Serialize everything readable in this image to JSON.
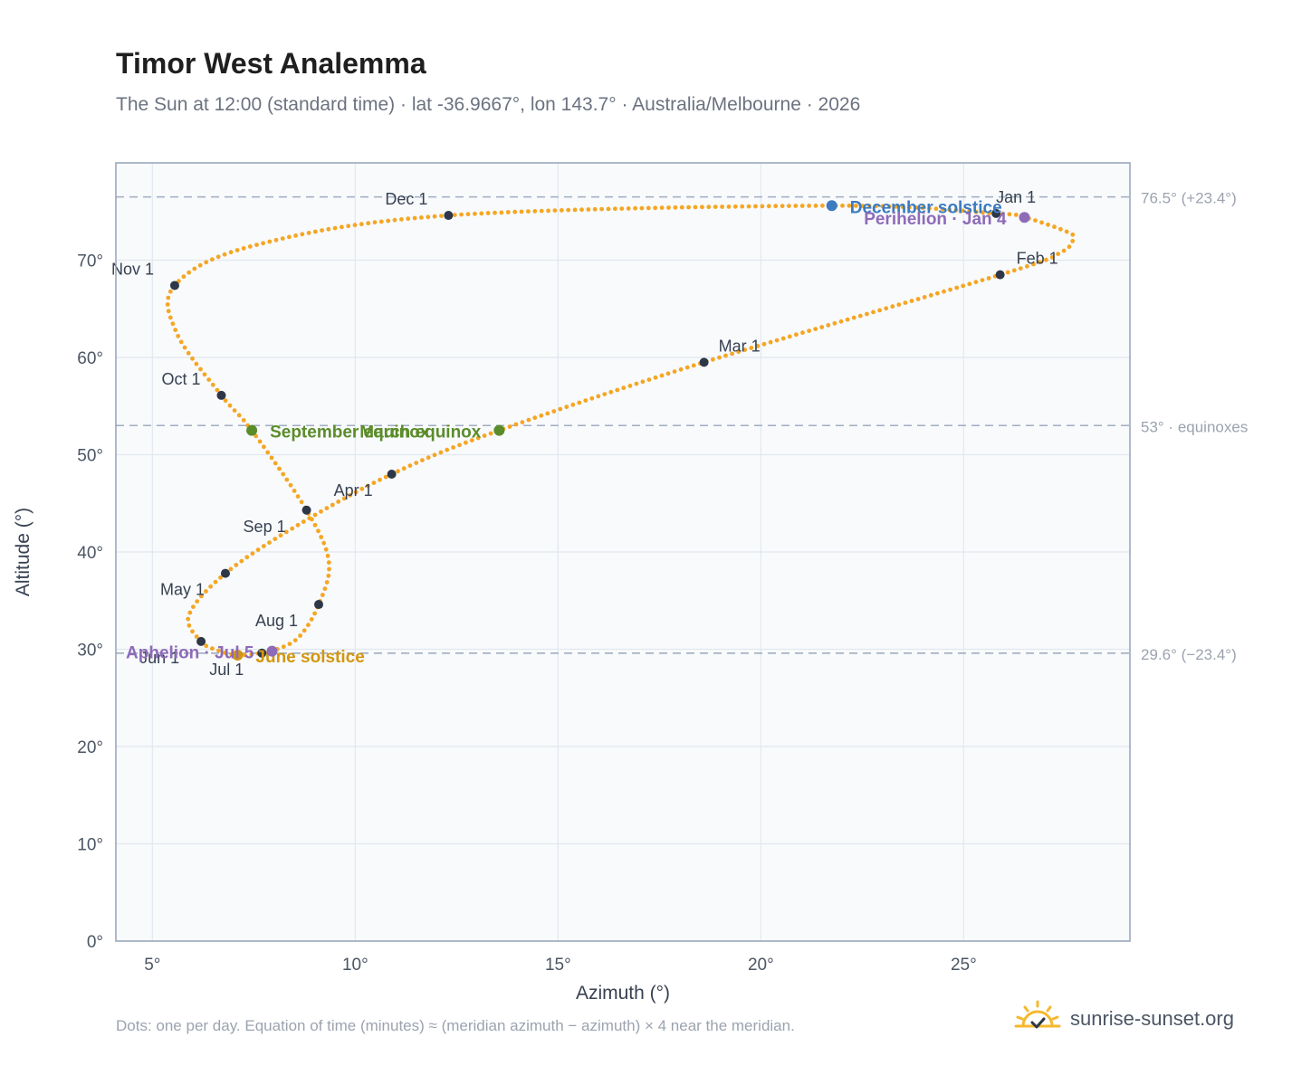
{
  "title": "Timor West Analemma",
  "subtitle": "The Sun at 12:00 (standard time) · lat -36.9667°, lon 143.7° · Australia/Melbourne · 2026",
  "footnote": "Dots: one per day. Equation of time (minutes) ≈ (meridian azimuth − azimuth) × 4 near the meridian.",
  "brand": {
    "text": "sunrise-sunset.org",
    "icon": "sun-checkmark-icon"
  },
  "colors": {
    "curve": "#f5a623",
    "month_marker": "#2d3748",
    "december_solstice": "#3b7bbf",
    "june_solstice": "#d4960f",
    "equinox": "#5b8c2a",
    "apsis": "#8e6bb8",
    "plot_background": "#f8fafc",
    "grid": "#e2e8f0",
    "reference_line": "#a0aec0"
  },
  "chart_data": {
    "type": "scatter",
    "xlabel": "Azimuth (°)",
    "ylabel": "Altitude (°)",
    "xlim": [
      4.1,
      29.1
    ],
    "ylim": [
      0,
      80
    ],
    "xticks": [
      5,
      10,
      15,
      20,
      25
    ],
    "xtick_labels": [
      "5°",
      "10°",
      "15°",
      "20°",
      "25°"
    ],
    "yticks": [
      0,
      10,
      20,
      30,
      40,
      50,
      60,
      70
    ],
    "ytick_labels": [
      "0°",
      "10°",
      "20°",
      "30°",
      "40°",
      "50°",
      "60°",
      "70°"
    ],
    "grid": true,
    "reference_lines": [
      {
        "y": 76.5,
        "label": "76.5° (+23.4°)"
      },
      {
        "y": 53,
        "label": "53° · equinoxes"
      },
      {
        "y": 29.6,
        "label": "29.6° (−23.4°)"
      }
    ],
    "analemma_path": [
      {
        "date": "Jan 1",
        "x": 25.8,
        "y": 74.8
      },
      {
        "date": "Jan 4",
        "x": 26.5,
        "y": 74.4
      },
      {
        "date": "Jan 15",
        "x": 27.5,
        "y": 73.0
      },
      {
        "date": "Jan 20",
        "x": 27.7,
        "y": 72.3
      },
      {
        "date": "Jan 25",
        "x": 27.4,
        "y": 70.8
      },
      {
        "date": "Feb 1",
        "x": 25.9,
        "y": 68.5
      },
      {
        "date": "Mar 1",
        "x": 18.6,
        "y": 59.5
      },
      {
        "date": "Mar 20",
        "x": 13.55,
        "y": 52.5
      },
      {
        "date": "Apr 1",
        "x": 10.9,
        "y": 48.0
      },
      {
        "date": "Apr 15",
        "x": 8.6,
        "y": 42.8
      },
      {
        "date": "May 1",
        "x": 6.8,
        "y": 37.8
      },
      {
        "date": "May 20",
        "x": 5.9,
        "y": 33.5
      },
      {
        "date": "Jun 1",
        "x": 6.2,
        "y": 30.8
      },
      {
        "date": "Jun 10",
        "x": 6.6,
        "y": 29.9
      },
      {
        "date": "Jun 21",
        "x": 7.1,
        "y": 29.4
      },
      {
        "date": "Jul 1",
        "x": 7.7,
        "y": 29.6
      },
      {
        "date": "Jul 5",
        "x": 7.95,
        "y": 29.8
      },
      {
        "date": "Jul 15",
        "x": 8.6,
        "y": 31.2
      },
      {
        "date": "Aug 1",
        "x": 9.1,
        "y": 34.6
      },
      {
        "date": "Aug 15",
        "x": 9.35,
        "y": 39.0
      },
      {
        "date": "Sep 1",
        "x": 8.8,
        "y": 44.3
      },
      {
        "date": "Sep 23",
        "x": 7.45,
        "y": 52.5
      },
      {
        "date": "Oct 1",
        "x": 6.7,
        "y": 56.1
      },
      {
        "date": "Oct 15",
        "x": 5.6,
        "y": 62.5
      },
      {
        "date": "Nov 1",
        "x": 5.55,
        "y": 67.4
      },
      {
        "date": "Nov 15",
        "x": 7.5,
        "y": 71.5
      },
      {
        "date": "Dec 1",
        "x": 12.3,
        "y": 74.6
      },
      {
        "date": "Dec 21",
        "x": 21.75,
        "y": 75.6
      },
      {
        "date": "Jan 1",
        "x": 25.8,
        "y": 74.8
      }
    ],
    "month_markers": [
      {
        "label": "Jan 1",
        "x": 25.8,
        "y": 74.8
      },
      {
        "label": "Feb 1",
        "x": 25.9,
        "y": 68.5
      },
      {
        "label": "Mar 1",
        "x": 18.6,
        "y": 59.5
      },
      {
        "label": "Apr 1",
        "x": 10.9,
        "y": 48.0
      },
      {
        "label": "May 1",
        "x": 6.8,
        "y": 37.8
      },
      {
        "label": "Jun 1",
        "x": 6.2,
        "y": 30.8
      },
      {
        "label": "Jul 1",
        "x": 7.7,
        "y": 29.6
      },
      {
        "label": "Aug 1",
        "x": 9.1,
        "y": 34.6
      },
      {
        "label": "Sep 1",
        "x": 8.8,
        "y": 44.3
      },
      {
        "label": "Oct 1",
        "x": 6.7,
        "y": 56.1
      },
      {
        "label": "Nov 1",
        "x": 5.55,
        "y": 67.4
      },
      {
        "label": "Dec 1",
        "x": 12.3,
        "y": 74.6
      }
    ],
    "events": [
      {
        "label": "December solstice",
        "x": 21.75,
        "y": 75.6,
        "kind": "december_solstice"
      },
      {
        "label": "June solstice",
        "x": 7.1,
        "y": 29.4,
        "kind": "june_solstice"
      },
      {
        "label": "March equinox",
        "x": 13.55,
        "y": 52.5,
        "kind": "equinox"
      },
      {
        "label": "September equinox",
        "x": 7.45,
        "y": 52.5,
        "kind": "equinox"
      },
      {
        "label": "Perihelion · Jan 4",
        "x": 26.5,
        "y": 74.4,
        "kind": "apsis"
      },
      {
        "label": "Aphelion · Jul 5",
        "x": 7.95,
        "y": 29.8,
        "kind": "apsis"
      }
    ]
  }
}
